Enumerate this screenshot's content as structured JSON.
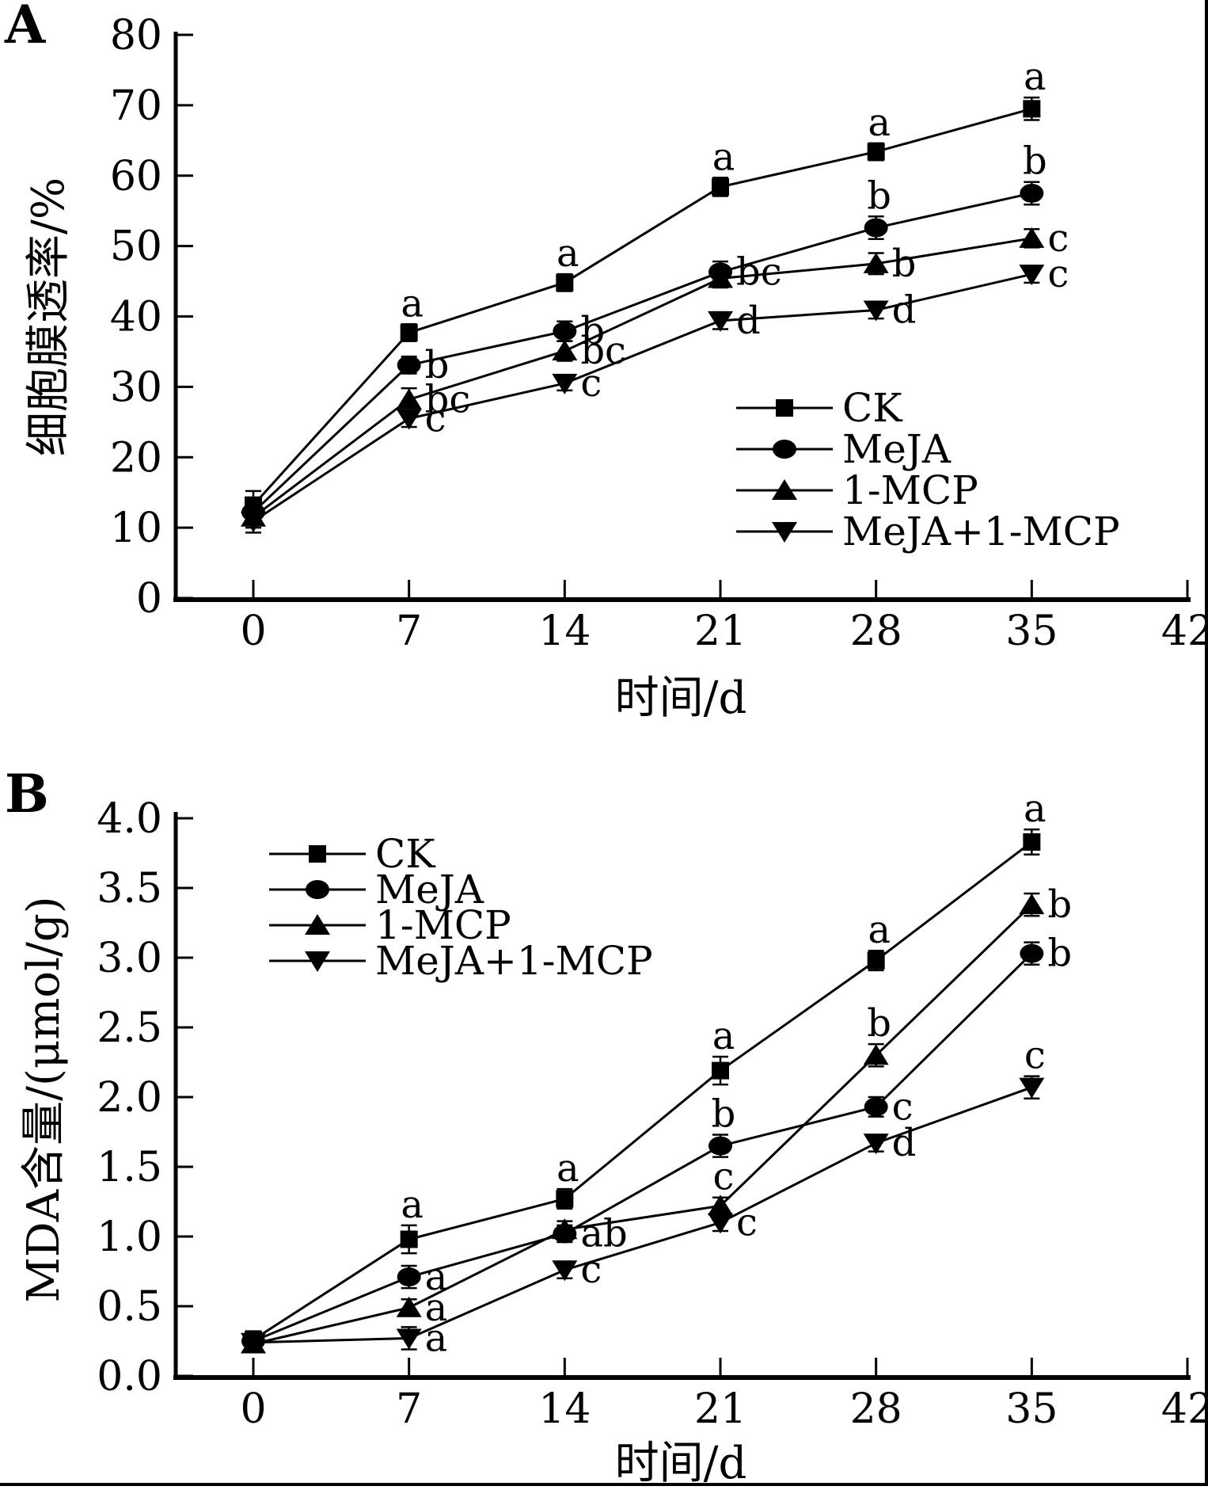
{
  "colors": {
    "foreground": "#000000",
    "background": "#ffffff"
  },
  "chart_data": [
    {
      "type": "line",
      "panel_label": "A",
      "xlabel": "时间/d",
      "ylabel": "细胞膜透率/%",
      "xlim": [
        0,
        42
      ],
      "ylim": [
        0,
        80
      ],
      "x_ticks": [
        0,
        7,
        14,
        21,
        28,
        35,
        42
      ],
      "x_tick_labels": [
        "0",
        "7",
        "14",
        "21",
        "28",
        "35",
        "42"
      ],
      "y_tick_step": 10,
      "y_tick_labels": [
        "0",
        "10",
        "20",
        "30",
        "40",
        "50",
        "60",
        "70",
        "80"
      ],
      "grid": false,
      "legend_position": "inside-right-middle",
      "x": [
        0,
        7,
        14,
        21,
        28,
        35
      ],
      "series": [
        {
          "name": "CK",
          "marker": "square",
          "values": [
            13.2,
            37.7,
            44.8,
            58.4,
            63.4,
            69.5
          ],
          "errors": [
            2.0,
            1.2,
            1.2,
            1.3,
            1.2,
            1.6
          ],
          "point_labels": [
            "",
            "a",
            "a",
            "a",
            "a",
            "a"
          ],
          "label_sides": [
            "",
            "above",
            "above",
            "above",
            "above",
            "above"
          ]
        },
        {
          "name": "MeJA",
          "marker": "circle",
          "values": [
            12.2,
            33.1,
            37.9,
            46.3,
            52.6,
            57.5
          ],
          "errors": [
            1.5,
            1.2,
            1.4,
            1.5,
            1.6,
            1.6
          ],
          "point_labels": [
            "",
            "b",
            "b",
            "bc",
            "b",
            "b"
          ],
          "label_sides": [
            "",
            "right",
            "right",
            "right",
            "above",
            "above"
          ]
        },
        {
          "name": "1-MCP",
          "marker": "triangle-up",
          "values": [
            11.5,
            28.2,
            35.1,
            45.4,
            47.5,
            51.1
          ],
          "errors": [
            1.5,
            1.6,
            1.4,
            1.3,
            1.5,
            1.3
          ],
          "point_labels": [
            "",
            "bc",
            "bc",
            "",
            "b",
            "c"
          ],
          "label_sides": [
            "",
            "right",
            "right",
            "",
            "right",
            "right"
          ]
        },
        {
          "name": "MeJA+1-MCP",
          "marker": "triangle-down",
          "values": [
            10.9,
            25.5,
            30.5,
            39.4,
            40.9,
            46.0
          ],
          "errors": [
            1.6,
            1.2,
            1.0,
            1.2,
            1.2,
            1.2
          ],
          "point_labels": [
            "",
            "c",
            "c",
            "d",
            "d",
            "c"
          ],
          "label_sides": [
            "",
            "right",
            "right",
            "right",
            "right",
            "right"
          ]
        }
      ]
    },
    {
      "type": "line",
      "panel_label": "B",
      "xlabel": "时间/d",
      "ylabel": "MDA含量/(μmol/g)",
      "xlim": [
        0,
        42
      ],
      "ylim": [
        0,
        4.0
      ],
      "x_ticks": [
        0,
        7,
        14,
        21,
        28,
        35,
        42
      ],
      "x_tick_labels": [
        "0",
        "7",
        "14",
        "21",
        "28",
        "35",
        "42"
      ],
      "y_tick_step": 0.5,
      "y_tick_labels": [
        "0.0",
        "0.5",
        "1.0",
        "1.5",
        "2.0",
        "2.5",
        "3.0",
        "3.5",
        "4.0"
      ],
      "grid": false,
      "legend_position": "inside-top-left",
      "x": [
        0,
        7,
        14,
        21,
        28,
        35
      ],
      "series": [
        {
          "name": "CK",
          "marker": "square",
          "values": [
            0.26,
            0.98,
            1.27,
            2.19,
            2.98,
            3.83
          ],
          "errors": [
            0.06,
            0.1,
            0.07,
            0.1,
            0.07,
            0.09
          ],
          "point_labels": [
            "",
            "a",
            "a",
            "a",
            "a",
            "a"
          ],
          "label_sides": [
            "",
            "above",
            "above",
            "above",
            "above",
            "above"
          ]
        },
        {
          "name": "MeJA",
          "marker": "circle",
          "values": [
            0.25,
            0.71,
            1.02,
            1.65,
            1.93,
            3.03
          ],
          "errors": [
            0.05,
            0.08,
            0.06,
            0.08,
            0.07,
            0.08
          ],
          "point_labels": [
            "",
            "a",
            "ab",
            "b",
            "c",
            "b"
          ],
          "label_sides": [
            "",
            "right",
            "right",
            "above",
            "right",
            "right"
          ]
        },
        {
          "name": "1-MCP",
          "marker": "triangle-up",
          "values": [
            0.23,
            0.49,
            1.05,
            1.22,
            2.3,
            3.38
          ],
          "errors": [
            0.05,
            0.06,
            0.06,
            0.06,
            0.08,
            0.08
          ],
          "point_labels": [
            "",
            "a",
            "",
            "c",
            "b",
            "b"
          ],
          "label_sides": [
            "",
            "right",
            "",
            "above",
            "above",
            "right"
          ]
        },
        {
          "name": "MeJA+1-MCP",
          "marker": "triangle-down",
          "values": [
            0.24,
            0.27,
            0.76,
            1.1,
            1.67,
            2.07
          ],
          "errors": [
            0.05,
            0.08,
            0.06,
            0.06,
            0.06,
            0.08
          ],
          "point_labels": [
            "",
            "a",
            "c",
            "c",
            "d",
            "c"
          ],
          "label_sides": [
            "",
            "right",
            "right",
            "right",
            "right",
            "above"
          ]
        }
      ]
    }
  ]
}
